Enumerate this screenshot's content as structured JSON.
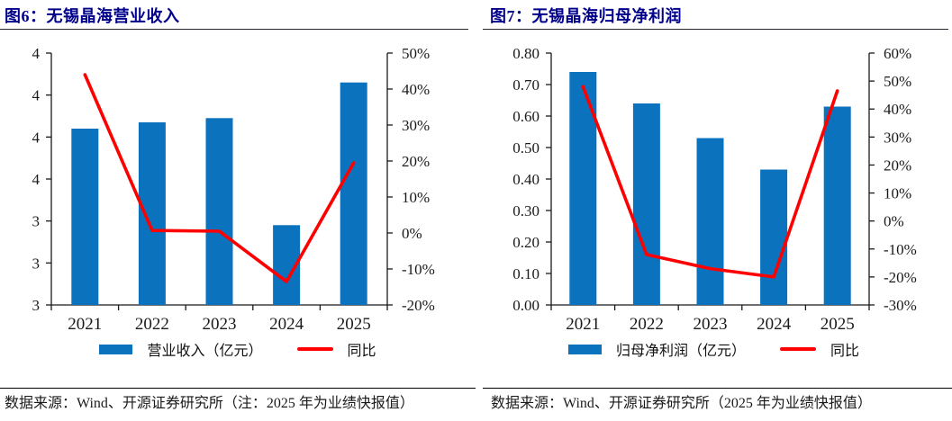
{
  "colors": {
    "bar": "#0B72BE",
    "line": "#FF0000",
    "title": "#00008B",
    "axis": "#1a1a1a"
  },
  "chart_data": [
    {
      "type": "combo-bar-line",
      "title": "图6：无锡晶海营业收入",
      "source_note": "数据来源：Wind、开源证券研究所（注：2025 年为业绩快报值）",
      "categories": [
        "2021",
        "2022",
        "2023",
        "2024",
        "2025"
      ],
      "series": [
        {
          "name": "营业收入（亿元）",
          "type": "bar",
          "axis": "left",
          "values": [
            3.84,
            3.87,
            3.89,
            3.38,
            4.06
          ]
        },
        {
          "name": "同比",
          "type": "line",
          "axis": "right",
          "values": [
            44,
            0.7,
            0.5,
            -13.5,
            19.5
          ]
        }
      ],
      "left_axis": {
        "min": 3.0,
        "max": 4.2,
        "step": 0.2,
        "tick_labels": [
          "4",
          "4",
          "4",
          "4",
          "3",
          "3",
          "3"
        ]
      },
      "right_axis": {
        "min": -20,
        "max": 50,
        "step": 10,
        "tick_labels": [
          "50%",
          "40%",
          "30%",
          "20%",
          "10%",
          "0%",
          "-10%",
          "-20%"
        ]
      },
      "legend_position": "bottom",
      "grid": false
    },
    {
      "type": "combo-bar-line",
      "title": "图7：无锡晶海归母净利润",
      "source_note": "数据来源：Wind、开源证券研究所（2025 年为业绩快报值）",
      "categories": [
        "2021",
        "2022",
        "2023",
        "2024",
        "2025"
      ],
      "series": [
        {
          "name": "归母净利润（亿元）",
          "type": "bar",
          "axis": "left",
          "values": [
            0.74,
            0.64,
            0.53,
            0.43,
            0.63
          ]
        },
        {
          "name": "同比",
          "type": "line",
          "axis": "right",
          "values": [
            48,
            -12,
            -17,
            -20,
            46.5
          ]
        }
      ],
      "left_axis": {
        "min": 0.0,
        "max": 0.8,
        "step": 0.1,
        "tick_labels": [
          "0.80",
          "0.70",
          "0.60",
          "0.50",
          "0.40",
          "0.30",
          "0.20",
          "0.10",
          "0.00"
        ]
      },
      "right_axis": {
        "min": -30,
        "max": 60,
        "step": 10,
        "tick_labels": [
          "60%",
          "50%",
          "40%",
          "30%",
          "20%",
          "10%",
          "0%",
          "-10%",
          "-20%",
          "-30%"
        ]
      },
      "legend_position": "bottom",
      "grid": false
    }
  ]
}
